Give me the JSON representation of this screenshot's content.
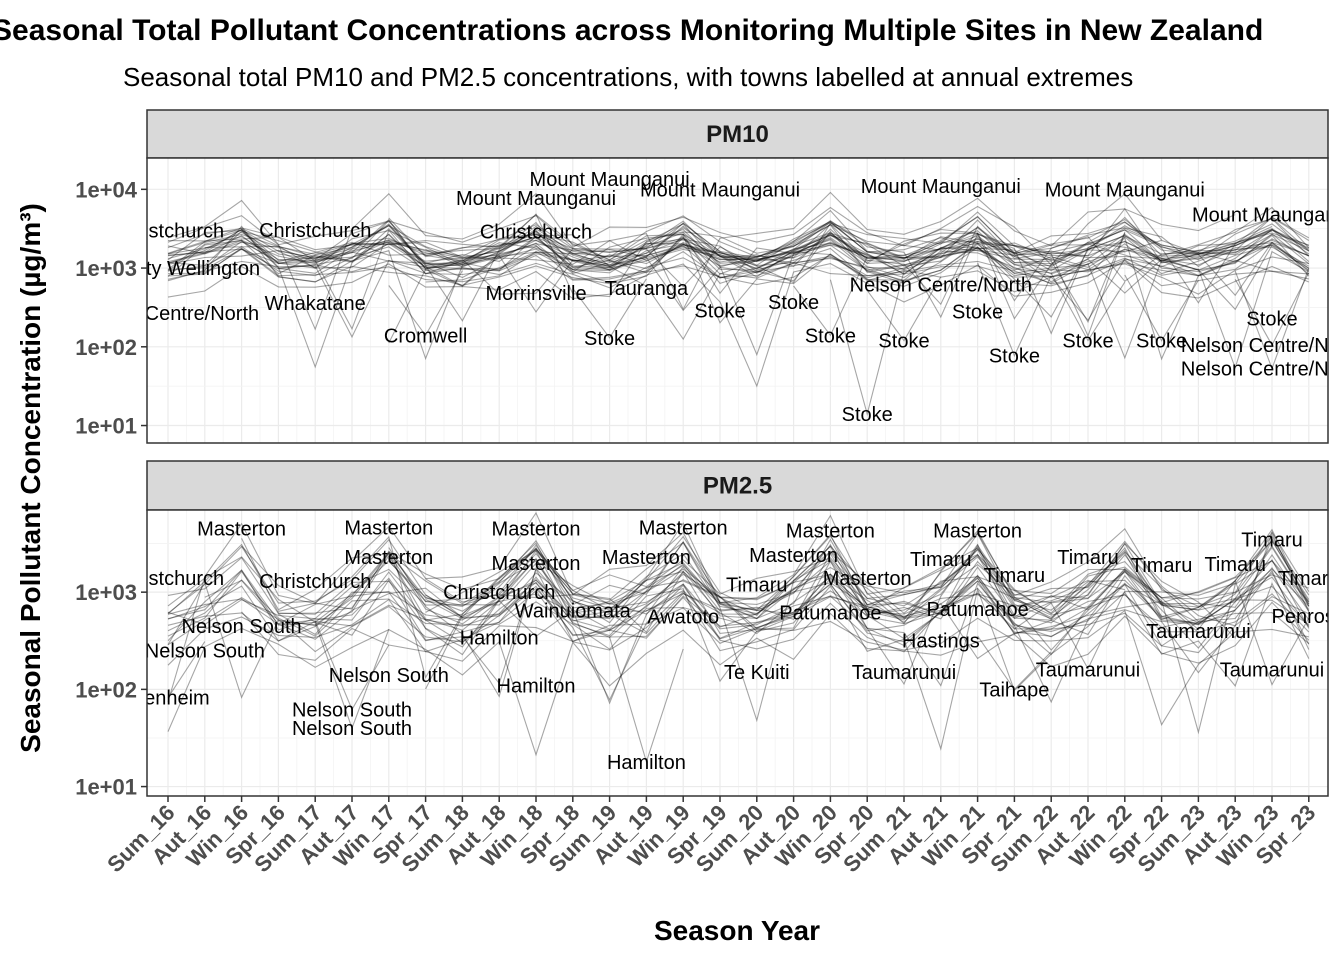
{
  "title": "Seasonal Total Pollutant Concentrations across Monitoring Multiple Sites in New Zealand",
  "subtitle": "Seasonal total PM10 and PM2.5 concentrations, with towns labelled at annual extremes",
  "chart_data": {
    "type": "line",
    "xlabel": "Season Year",
    "ylabel": "Seasonal Pollutant Concentration (µg/m³)",
    "y_scale": "log10",
    "grid": true,
    "legend": "none",
    "categories": [
      "Sum_16",
      "Aut_16",
      "Win_16",
      "Spr_16",
      "Sum_17",
      "Aut_17",
      "Win_17",
      "Spr_17",
      "Sum_18",
      "Aut_18",
      "Win_18",
      "Spr_18",
      "Sum_19",
      "Aut_19",
      "Win_19",
      "Spr_19",
      "Sum_20",
      "Aut_20",
      "Win_20",
      "Spr_20",
      "Sum_21",
      "Aut_21",
      "Win_21",
      "Spr_21",
      "Sum_22",
      "Aut_22",
      "Win_22",
      "Spr_22",
      "Sum_23",
      "Aut_23",
      "Win_23",
      "Spr_23"
    ],
    "line_color": "#000000",
    "panels": [
      {
        "name": "PM10",
        "ylim": [
          6,
          25000
        ],
        "yticks": [
          "1e+01",
          "1e+02",
          "1e+03",
          "1e+04"
        ],
        "annotations": [
          {
            "label": "Christchurch",
            "x": "Sum_16",
            "y": 3000
          },
          {
            "label": "Inner City Wellington",
            "x": "Sum_16",
            "y": 1000
          },
          {
            "label": "Nelson Centre/North",
            "x": "Sum_16",
            "y": 270
          },
          {
            "label": "Christchurch",
            "x": "Sum_17",
            "y": 3050
          },
          {
            "label": "Whakatane",
            "x": "Sum_17",
            "y": 360
          },
          {
            "label": "Cromwell",
            "x": "Spr_17",
            "y": 140
          },
          {
            "label": "Mount Maunganui",
            "x": "Win_18",
            "y": 7800
          },
          {
            "label": "Christchurch",
            "x": "Win_18",
            "y": 2900
          },
          {
            "label": "Morrinsville",
            "x": "Win_18",
            "y": 480
          },
          {
            "label": "Mount Maunganui",
            "x": "Sum_19",
            "y": 13500
          },
          {
            "label": "Stoke",
            "x": "Sum_19",
            "y": 130
          },
          {
            "label": "Tauranga",
            "x": "Aut_19",
            "y": 560
          },
          {
            "label": "Mount Maunganui",
            "x": "Spr_19",
            "y": 10000
          },
          {
            "label": "Stoke",
            "x": "Spr_19",
            "y": 290
          },
          {
            "label": "Stoke",
            "x": "Aut_20",
            "y": 370
          },
          {
            "label": "Stoke",
            "x": "Win_20",
            "y": 140
          },
          {
            "label": "Stoke",
            "x": "Spr_20",
            "y": 14
          },
          {
            "label": "Mount Maunganui",
            "x": "Aut_21",
            "y": 11000
          },
          {
            "label": "Stoke",
            "x": "Sum_21",
            "y": 120
          },
          {
            "label": "Nelson Centre/North",
            "x": "Aut_21",
            "y": 620
          },
          {
            "label": "Stoke",
            "x": "Win_21",
            "y": 280
          },
          {
            "label": "Stoke",
            "x": "Spr_21",
            "y": 77
          },
          {
            "label": "Mount Maunganui",
            "x": "Win_22",
            "y": 10000
          },
          {
            "label": "Stoke",
            "x": "Aut_22",
            "y": 120
          },
          {
            "label": "Stoke",
            "x": "Spr_22",
            "y": 120
          },
          {
            "label": "Nelson Centre/North",
            "x": "Win_23",
            "y": 53
          },
          {
            "label": "Mount Maunganui",
            "x": "Win_23",
            "y": 4800
          },
          {
            "label": "Stoke",
            "x": "Win_23",
            "y": 230
          },
          {
            "label": "Nelson Centre/North",
            "x": "Win_23",
            "y": 105
          }
        ]
      },
      {
        "name": "PM2.5",
        "ylim": [
          8,
          7000
        ],
        "yticks": [
          "1e+01",
          "1e+02",
          "1e+03"
        ],
        "annotations": [
          {
            "label": "Masterton",
            "x": "Win_16",
            "y": 4500
          },
          {
            "label": "Christchurch",
            "x": "Sum_16",
            "y": 1400
          },
          {
            "label": "Nelson South",
            "x": "Win_16",
            "y": 450
          },
          {
            "label": "Nelson South",
            "x": "Aut_16",
            "y": 250
          },
          {
            "label": "Blenheim",
            "x": "Sum_16",
            "y": 82
          },
          {
            "label": "Masterton",
            "x": "Win_17",
            "y": 4600
          },
          {
            "label": "Masterton",
            "x": "Win_17",
            "y": 2300
          },
          {
            "label": "Christchurch",
            "x": "Sum_17",
            "y": 1300
          },
          {
            "label": "Nelson South",
            "x": "Win_17",
            "y": 140
          },
          {
            "label": "Nelson South",
            "x": "Aut_17",
            "y": 62
          },
          {
            "label": "Nelson South",
            "x": "Aut_17",
            "y": 40
          },
          {
            "label": "Christchurch",
            "x": "Aut_18",
            "y": 1000
          },
          {
            "label": "Masterton",
            "x": "Win_18",
            "y": 4500
          },
          {
            "label": "Masterton",
            "x": "Win_18",
            "y": 2000
          },
          {
            "label": "Hamilton",
            "x": "Aut_18",
            "y": 340
          },
          {
            "label": "Hamilton",
            "x": "Win_18",
            "y": 110
          },
          {
            "label": "Wainuiomata",
            "x": "Spr_18",
            "y": 650
          },
          {
            "label": "Masterton",
            "x": "Win_19",
            "y": 4600
          },
          {
            "label": "Masterton",
            "x": "Aut_19",
            "y": 2300
          },
          {
            "label": "Awatoto",
            "x": "Win_19",
            "y": 560
          },
          {
            "label": "Hamilton",
            "x": "Aut_19",
            "y": 18
          },
          {
            "label": "Timaru",
            "x": "Sum_20",
            "y": 1200
          },
          {
            "label": "Te Kuiti",
            "x": "Sum_20",
            "y": 150
          },
          {
            "label": "Masterton",
            "x": "Win_20",
            "y": 4300
          },
          {
            "label": "Masterton",
            "x": "Aut_20",
            "y": 2400
          },
          {
            "label": "Masterton",
            "x": "Spr_20",
            "y": 1400
          },
          {
            "label": "Patumahoe",
            "x": "Win_20",
            "y": 620
          },
          {
            "label": "Masterton",
            "x": "Win_21",
            "y": 4300
          },
          {
            "label": "Timaru",
            "x": "Aut_21",
            "y": 2200
          },
          {
            "label": "Taumarunui",
            "x": "Sum_21",
            "y": 150
          },
          {
            "label": "Timaru",
            "x": "Spr_21",
            "y": 1500
          },
          {
            "label": "Patumahoe",
            "x": "Win_21",
            "y": 670
          },
          {
            "label": "Hastings",
            "x": "Aut_21",
            "y": 320
          },
          {
            "label": "Timaru",
            "x": "Aut_22",
            "y": 2300
          },
          {
            "label": "Taihape",
            "x": "Spr_21",
            "y": 100
          },
          {
            "label": "Taumarunui",
            "x": "Aut_22",
            "y": 160
          },
          {
            "label": "Taumarunui",
            "x": "Sum_23",
            "y": 400
          },
          {
            "label": "Timaru",
            "x": "Spr_22",
            "y": 1900
          },
          {
            "label": "Timaru",
            "x": "Aut_23",
            "y": 1950
          },
          {
            "label": "Timaru",
            "x": "Win_23",
            "y": 3500
          },
          {
            "label": "Timaru",
            "x": "Spr_23",
            "y": 1400
          },
          {
            "label": "Taumarunui",
            "x": "Win_23",
            "y": 160
          },
          {
            "label": "Penrose",
            "x": "Spr_23",
            "y": 570
          }
        ]
      }
    ]
  }
}
